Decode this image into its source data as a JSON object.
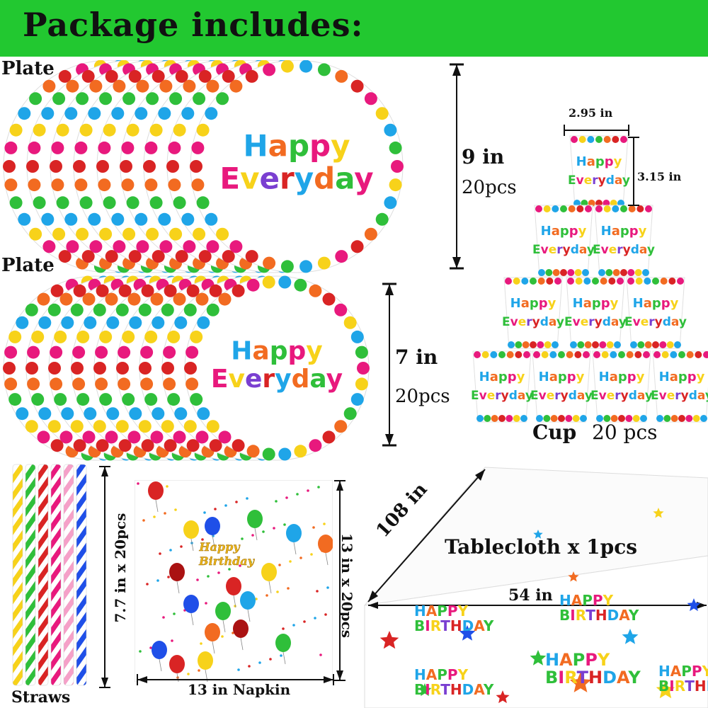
{
  "header": {
    "title": "Package includes:"
  },
  "plates_large": {
    "label": "Plate",
    "size": "9 in",
    "count": "20pcs",
    "print_line1": "Happy",
    "print_line2": "Everyday"
  },
  "plates_small": {
    "label": "Plate",
    "size": "7 in",
    "count": "20pcs",
    "print_line1": "Happy",
    "print_line2": "Everyday"
  },
  "cups": {
    "label": "Cup",
    "count": "20 pcs",
    "width": "2.95 in",
    "height": "3.15 in",
    "print_line1": "Happy",
    "print_line2": "Everyday"
  },
  "straws": {
    "label": "Straws",
    "size": "7.7 in x 20pcs"
  },
  "napkin": {
    "label": "13 in Napkin",
    "size": "13 in x 20pcs",
    "print_line1": "Happy",
    "print_line2": "Birthday"
  },
  "tablecloth": {
    "label": "Tablecloth x 1pcs",
    "length": "108 in",
    "width": "54 in",
    "print_line1": "HAPPY",
    "print_line2": "BIRTHDAY"
  },
  "colors": {
    "banner": "#22c830",
    "dot_palette": [
      "#e8197d",
      "#f7d21a",
      "#1fa5e8",
      "#2fbf3a",
      "#f26b21",
      "#d92424"
    ]
  }
}
